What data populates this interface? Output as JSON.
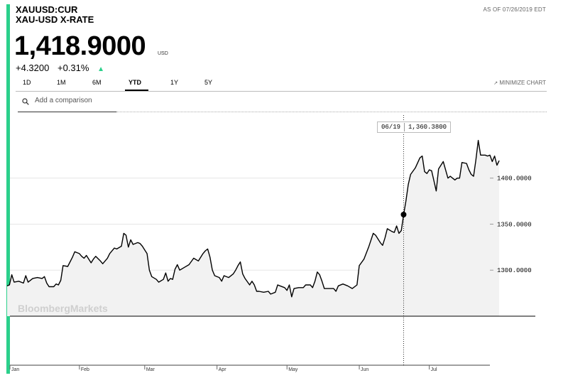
{
  "header": {
    "ticker": "XAUUSD:CUR",
    "name": "XAU-USD X-RATE",
    "as_of": "AS OF 07/26/2019 EDT",
    "price": "1,418.9000",
    "currency": "USD",
    "change_abs": "+4.3200",
    "change_pct": "+0.31%",
    "direction": "up",
    "accent_color": "#2bd08b"
  },
  "tabs": [
    {
      "label": "1D",
      "active": false
    },
    {
      "label": "1M",
      "active": false
    },
    {
      "label": "6M",
      "active": false
    },
    {
      "label": "YTD",
      "active": true
    },
    {
      "label": "1Y",
      "active": false
    },
    {
      "label": "5Y",
      "active": false
    }
  ],
  "minimize_label": "MINIMIZE CHART",
  "compare": {
    "placeholder": "Add a comparison",
    "icon": "search-icon"
  },
  "tooltip": {
    "date": "06/19",
    "value": "1,360.3800"
  },
  "watermark": "BloombergMarkets",
  "chart_data": {
    "type": "area",
    "title": "",
    "xlabel": "",
    "ylabel": "",
    "y_tick_labels": [
      "1300.0000",
      "1350.0000",
      "1400.0000"
    ],
    "y_ticks": [
      1300,
      1350,
      1400
    ],
    "x_tick_labels": [
      "Jan",
      "Feb",
      "Mar",
      "Apr",
      "May",
      "Jun",
      "Jul"
    ],
    "x_ticks": [
      0,
      31,
      59,
      90,
      120,
      151,
      181
    ],
    "xlim": [
      0,
      207
    ],
    "ylim": [
      1250,
      1470
    ],
    "grid": true,
    "highlight": {
      "x": 170,
      "y": 1360.38
    },
    "series": [
      {
        "values": [
          [
            0,
            1283
          ],
          [
            1,
            1284
          ],
          [
            2,
            1295
          ],
          [
            3,
            1287
          ],
          [
            5,
            1288
          ],
          [
            7,
            1286
          ],
          [
            8,
            1294
          ],
          [
            9,
            1287
          ],
          [
            11,
            1291
          ],
          [
            13,
            1292
          ],
          [
            15,
            1291
          ],
          [
            16,
            1293
          ],
          [
            17,
            1286
          ],
          [
            18,
            1282
          ],
          [
            20,
            1282
          ],
          [
            21,
            1285
          ],
          [
            22,
            1284
          ],
          [
            23,
            1289
          ],
          [
            24,
            1305
          ],
          [
            26,
            1304
          ],
          [
            28,
            1314
          ],
          [
            29,
            1320
          ],
          [
            30,
            1319
          ],
          [
            31,
            1318
          ],
          [
            32,
            1315
          ],
          [
            33,
            1313
          ],
          [
            34,
            1316
          ],
          [
            36,
            1308
          ],
          [
            37,
            1312
          ],
          [
            38,
            1315
          ],
          [
            40,
            1310
          ],
          [
            41,
            1307
          ],
          [
            43,
            1313
          ],
          [
            44,
            1318
          ],
          [
            46,
            1324
          ],
          [
            47,
            1323
          ],
          [
            49,
            1326
          ],
          [
            50,
            1340
          ],
          [
            51,
            1338
          ],
          [
            52,
            1325
          ],
          [
            53,
            1333
          ],
          [
            54,
            1328
          ],
          [
            56,
            1330
          ],
          [
            57,
            1329
          ],
          [
            58,
            1326
          ],
          [
            59,
            1322
          ],
          [
            60,
            1318
          ],
          [
            61,
            1300
          ],
          [
            62,
            1293
          ],
          [
            64,
            1290
          ],
          [
            65,
            1287
          ],
          [
            67,
            1290
          ],
          [
            68,
            1297
          ],
          [
            69,
            1288
          ],
          [
            70,
            1291
          ],
          [
            71,
            1290
          ],
          [
            72,
            1301
          ],
          [
            73,
            1306
          ],
          [
            74,
            1300
          ],
          [
            76,
            1303
          ],
          [
            78,
            1306
          ],
          [
            80,
            1313
          ],
          [
            82,
            1310
          ],
          [
            84,
            1318
          ],
          [
            85,
            1321
          ],
          [
            86,
            1323
          ],
          [
            87,
            1314
          ],
          [
            88,
            1300
          ],
          [
            89,
            1294
          ],
          [
            91,
            1292
          ],
          [
            92,
            1288
          ],
          [
            93,
            1294
          ],
          [
            95,
            1292
          ],
          [
            97,
            1296
          ],
          [
            98,
            1300
          ],
          [
            99,
            1305
          ],
          [
            100,
            1309
          ],
          [
            101,
            1296
          ],
          [
            102,
            1291
          ],
          [
            104,
            1284
          ],
          [
            105,
            1288
          ],
          [
            106,
            1284
          ],
          [
            107,
            1277
          ],
          [
            108,
            1277
          ],
          [
            110,
            1276
          ],
          [
            112,
            1277
          ],
          [
            113,
            1274
          ],
          [
            115,
            1276
          ],
          [
            116,
            1284
          ],
          [
            117,
            1283
          ],
          [
            119,
            1281
          ],
          [
            120,
            1278
          ],
          [
            121,
            1284
          ],
          [
            122,
            1271
          ],
          [
            123,
            1280
          ],
          [
            125,
            1281
          ],
          [
            127,
            1281
          ],
          [
            128,
            1284
          ],
          [
            130,
            1284
          ],
          [
            131,
            1281
          ],
          [
            132,
            1288
          ],
          [
            133,
            1298
          ],
          [
            134,
            1295
          ],
          [
            135,
            1288
          ],
          [
            136,
            1280
          ],
          [
            138,
            1280
          ],
          [
            140,
            1280
          ],
          [
            141,
            1277
          ],
          [
            142,
            1283
          ],
          [
            144,
            1285
          ],
          [
            146,
            1283
          ],
          [
            148,
            1280
          ],
          [
            150,
            1284
          ],
          [
            151,
            1305
          ],
          [
            153,
            1312
          ],
          [
            155,
            1325
          ],
          [
            157,
            1340
          ],
          [
            158,
            1338
          ],
          [
            160,
            1330
          ],
          [
            161,
            1327
          ],
          [
            162,
            1335
          ],
          [
            163,
            1345
          ],
          [
            165,
            1342
          ],
          [
            166,
            1341
          ],
          [
            167,
            1348
          ],
          [
            168,
            1340
          ],
          [
            169,
            1343
          ],
          [
            170,
            1360.38
          ],
          [
            171,
            1375
          ],
          [
            172,
            1393
          ],
          [
            173,
            1404
          ],
          [
            175,
            1411
          ],
          [
            177,
            1422
          ],
          [
            178,
            1424
          ],
          [
            179,
            1407
          ],
          [
            180,
            1405
          ],
          [
            181,
            1409
          ],
          [
            182,
            1408
          ],
          [
            183,
            1397
          ],
          [
            184,
            1386
          ],
          [
            185,
            1410
          ],
          [
            187,
            1418
          ],
          [
            189,
            1400
          ],
          [
            190,
            1402
          ],
          [
            192,
            1398
          ],
          [
            193,
            1400
          ],
          [
            194,
            1400
          ],
          [
            195,
            1417
          ],
          [
            197,
            1416
          ],
          [
            198,
            1409
          ],
          [
            199,
            1404
          ],
          [
            200,
            1402
          ],
          [
            201,
            1420
          ],
          [
            202,
            1441
          ],
          [
            203,
            1425
          ],
          [
            205,
            1425
          ],
          [
            206,
            1424
          ],
          [
            207,
            1425
          ],
          [
            208,
            1418
          ],
          [
            209,
            1424
          ],
          [
            210,
            1414
          ],
          [
            211,
            1419
          ]
        ]
      }
    ]
  }
}
